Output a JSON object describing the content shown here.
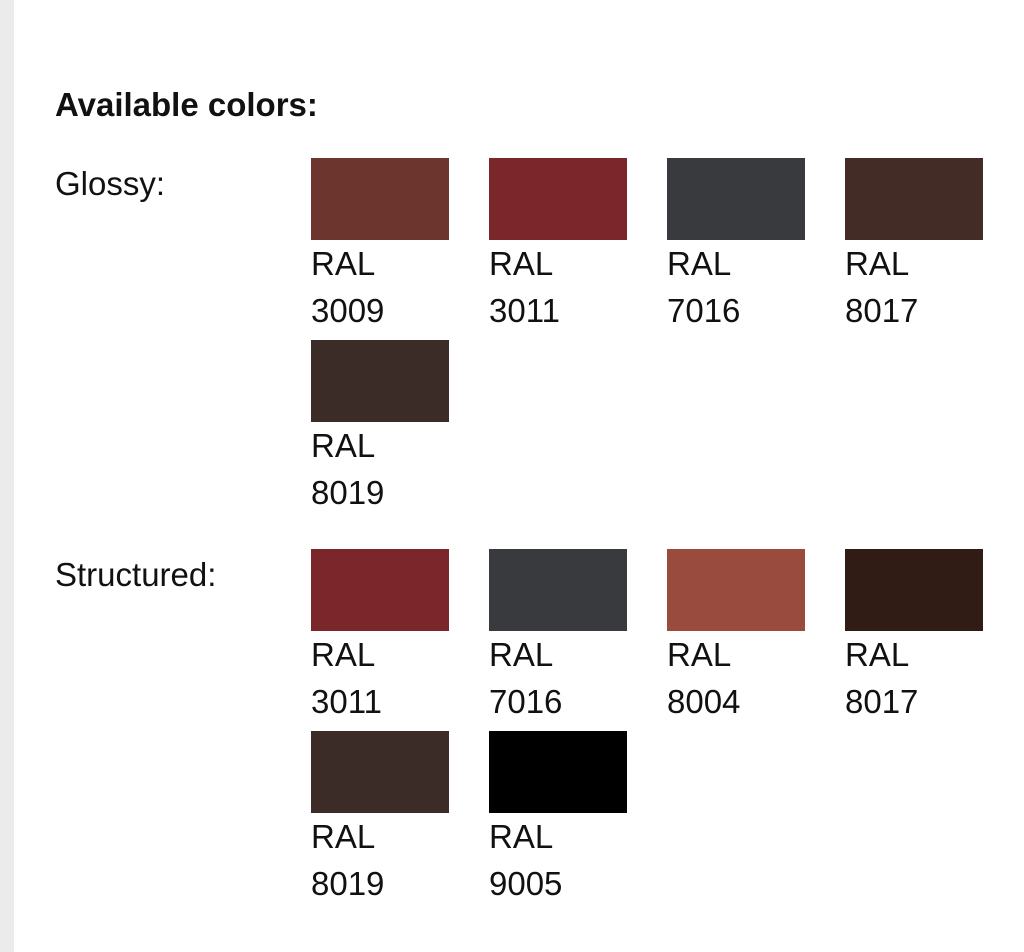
{
  "title": "Available colors:",
  "groups": [
    {
      "label": "Glossy:",
      "swatches": [
        {
          "label": "RAL 3009",
          "color": "#6c362f"
        },
        {
          "label": "RAL 3011",
          "color": "#7a262a"
        },
        {
          "label": "RAL 7016",
          "color": "#383a3d"
        },
        {
          "label": "RAL 8017",
          "color": "#432c26"
        },
        {
          "label": "RAL 8019",
          "color": "#3b2c28"
        }
      ]
    },
    {
      "label": "Structured:",
      "swatches": [
        {
          "label": "RAL 3011",
          "color": "#7a262a"
        },
        {
          "label": "RAL 7016",
          "color": "#383a3d"
        },
        {
          "label": "RAL 8004",
          "color": "#994b3d"
        },
        {
          "label": "RAL 8017",
          "color": "#311b15"
        },
        {
          "label": "RAL 8019",
          "color": "#3b2c28"
        },
        {
          "label": "RAL 9005",
          "color": "#000000"
        }
      ]
    }
  ]
}
